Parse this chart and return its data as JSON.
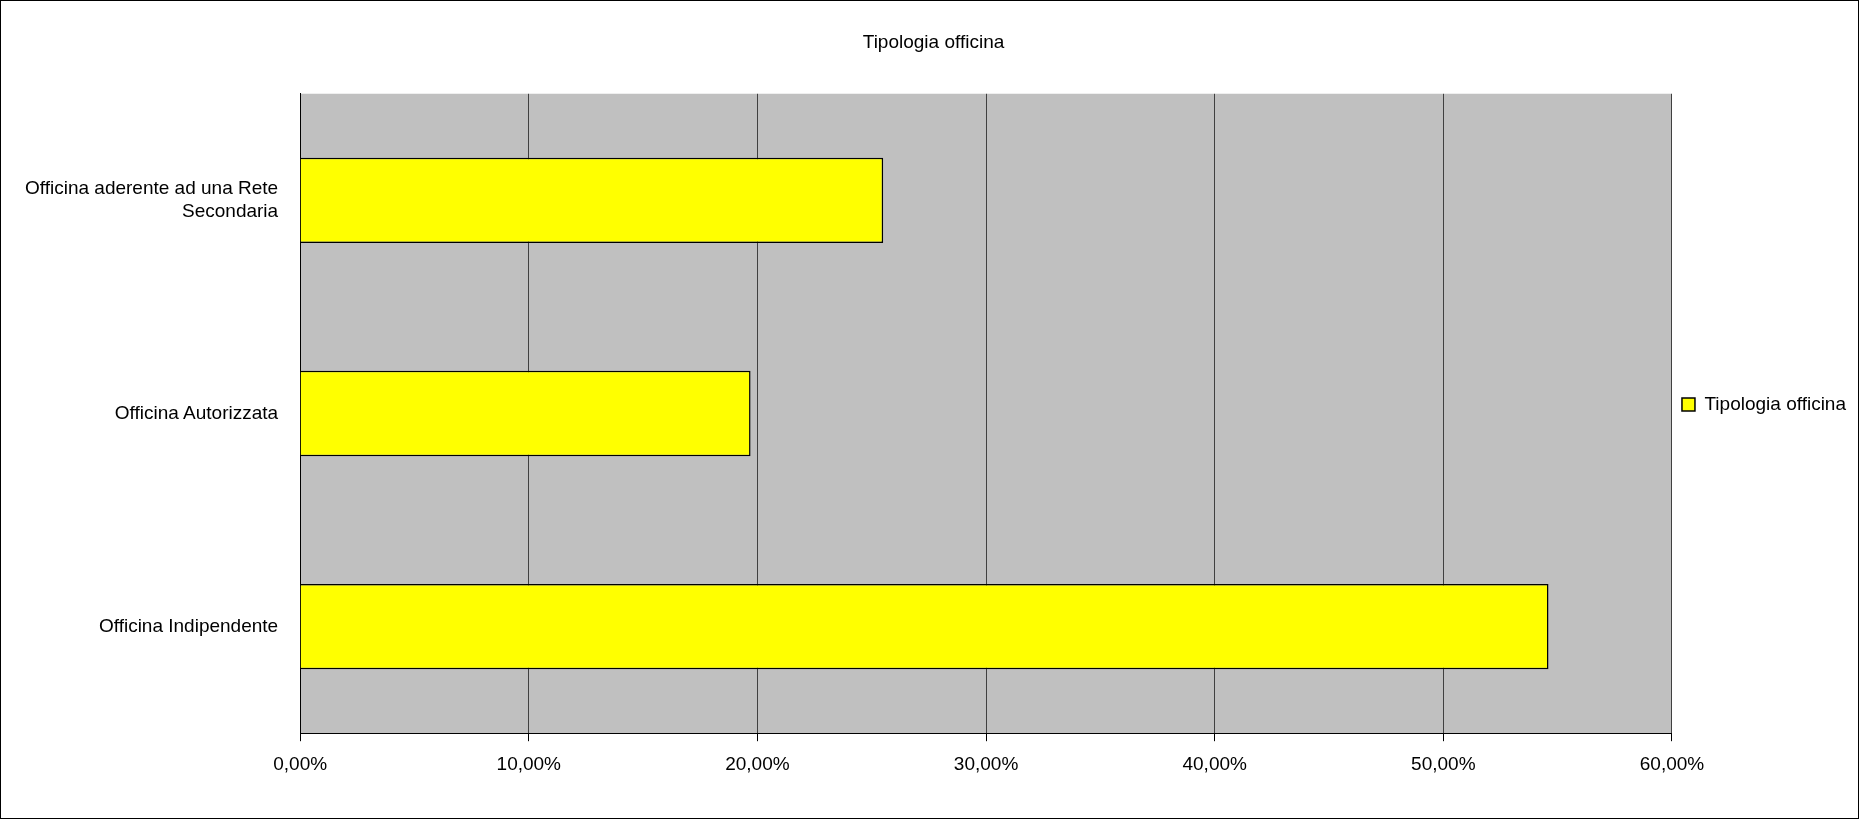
{
  "chart_data": {
    "type": "bar",
    "orientation": "horizontal",
    "title": "Tipologia officina",
    "categories": [
      "Officina aderente ad una Rete Secondaria",
      "Officina Autorizzata",
      "Officina Indipendente"
    ],
    "series": [
      {
        "name": "Tipologia officina",
        "color": "#ffff00",
        "values": [
          25.5,
          19.7,
          54.6
        ]
      }
    ],
    "xlim": [
      0,
      60
    ],
    "xticks": [
      {
        "value": 0,
        "label": "0,00%"
      },
      {
        "value": 10,
        "label": "10,00%"
      },
      {
        "value": 20,
        "label": "20,00%"
      },
      {
        "value": 30,
        "label": "30,00%"
      },
      {
        "value": 40,
        "label": "40,00%"
      },
      {
        "value": 50,
        "label": "50,00%"
      },
      {
        "value": 60,
        "label": "60,00%"
      }
    ],
    "grid": "x",
    "legend": "right"
  }
}
